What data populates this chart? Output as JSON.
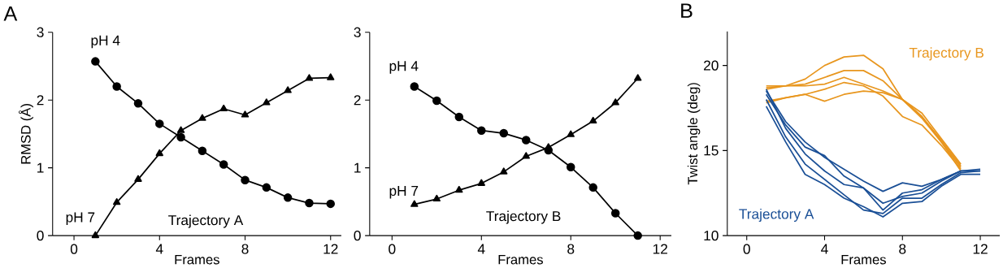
{
  "chart_data": [
    {
      "type": "line",
      "title": "A",
      "xlabel": "Frames",
      "ylabel": "RMSD (Å)",
      "x": [
        1,
        2,
        3,
        4,
        5,
        6,
        7,
        8,
        9,
        10,
        11,
        12
      ],
      "xlim": [
        -1,
        12.5
      ],
      "xticks": [
        0,
        4,
        8,
        12
      ],
      "ylim": [
        0,
        3
      ],
      "yticks": [
        0,
        1,
        2,
        3
      ],
      "series": [
        {
          "color": "#000000",
          "marker": "circle",
          "values": [
            2.57,
            2.2,
            1.95,
            1.65,
            1.45,
            1.25,
            1.05,
            0.82,
            0.71,
            0.56,
            0.48,
            0.47
          ]
        },
        {
          "color": "#000000",
          "marker": "triangle",
          "values": [
            0,
            0.49,
            0.83,
            1.21,
            1.55,
            1.73,
            1.87,
            1.78,
            1.96,
            2.14,
            2.32,
            2.33
          ]
        }
      ],
      "annotations": [
        "pH 4",
        "pH 7",
        "Trajectory A"
      ]
    },
    {
      "type": "line",
      "xlabel": "Frames",
      "x": [
        1,
        2,
        3,
        4,
        5,
        6,
        7,
        8,
        9,
        10,
        11
      ],
      "xlim": [
        -1,
        12.5
      ],
      "xticks": [
        0,
        4,
        8,
        12
      ],
      "ylim": [
        0,
        3
      ],
      "yticks": [
        0,
        1,
        2,
        3
      ],
      "series": [
        {
          "color": "#000000",
          "marker": "circle",
          "values": [
            2.2,
            1.99,
            1.75,
            1.55,
            1.51,
            1.41,
            1.26,
            1.01,
            0.71,
            0.33,
            0
          ]
        },
        {
          "color": "#000000",
          "marker": "triangle",
          "values": [
            0.46,
            0.54,
            0.67,
            0.77,
            0.94,
            1.17,
            1.3,
            1.49,
            1.69,
            1.96,
            2.32
          ]
        }
      ],
      "annotations": [
        "pH 4",
        "pH 7",
        "Trajectory B"
      ]
    },
    {
      "type": "line",
      "title": "B",
      "xlabel": "Frames",
      "ylabel": "Twist angle (deg)",
      "xlim": [
        -1,
        13
      ],
      "xticks": [
        0,
        4,
        8,
        12
      ],
      "ylim": [
        10,
        22
      ],
      "yticks": [
        10,
        15,
        20
      ],
      "marker": "none",
      "series": [
        {
          "name": "Trajectory B",
          "color": "#e8961e",
          "x": [
            1,
            2,
            3,
            4,
            5,
            6,
            7,
            8,
            9,
            10,
            11
          ],
          "values": [
            18.8,
            18.8,
            19.2,
            20.0,
            20.5,
            20.6,
            19.8,
            18.0,
            17.0,
            15.5,
            14.0
          ]
        },
        {
          "color": "#e8961e",
          "x": [
            1,
            2,
            3,
            4,
            5,
            6,
            7,
            8,
            9,
            10,
            11
          ],
          "values": [
            18.6,
            18.8,
            18.9,
            19.3,
            19.7,
            19.7,
            19.1,
            18.0,
            17.2,
            15.7,
            14.2
          ]
        },
        {
          "color": "#e8961e",
          "x": [
            1,
            2,
            3,
            4,
            5,
            6,
            7,
            8,
            9,
            10,
            11
          ],
          "values": [
            18.7,
            18.8,
            18.8,
            18.9,
            19.3,
            18.9,
            18.5,
            18.0,
            17.0,
            15.6,
            14.1
          ]
        },
        {
          "color": "#e8961e",
          "x": [
            1,
            2,
            3,
            4,
            5,
            6,
            7,
            8,
            9,
            10,
            11
          ],
          "values": [
            17.8,
            18.1,
            18.3,
            18.6,
            19.0,
            18.8,
            18.2,
            17.0,
            16.5,
            15.3,
            13.9
          ]
        },
        {
          "color": "#e8961e",
          "x": [
            1,
            2,
            3,
            4,
            5,
            6,
            7,
            8,
            9,
            10,
            11
          ],
          "values": [
            17.9,
            18.1,
            18.3,
            17.9,
            18.3,
            18.5,
            18.4,
            18.0,
            16.9,
            15.5,
            13.8
          ]
        },
        {
          "name": "Trajectory A",
          "color": "#1a4f96",
          "x": [
            1,
            2,
            3,
            4,
            5,
            6,
            7,
            8,
            9,
            10,
            11,
            12
          ],
          "values": [
            18.5,
            16.7,
            15.5,
            14.6,
            13.9,
            13.2,
            12.6,
            13.1,
            12.9,
            13.3,
            13.8,
            13.9
          ]
        },
        {
          "color": "#1a4f96",
          "x": [
            1,
            2,
            3,
            4,
            5,
            6,
            7,
            8,
            9,
            10,
            11,
            12
          ],
          "values": [
            18.3,
            16.5,
            15.2,
            14.7,
            13.5,
            12.8,
            11.9,
            12.3,
            12.5,
            13.2,
            13.8,
            13.8
          ]
        },
        {
          "color": "#1a4f96",
          "x": [
            1,
            2,
            3,
            4,
            5,
            6,
            7,
            8,
            9,
            10,
            11,
            12
          ],
          "values": [
            18.6,
            16.3,
            14.8,
            13.8,
            13.0,
            12.8,
            11.5,
            12.5,
            12.7,
            13.3,
            13.8,
            13.8
          ]
        },
        {
          "color": "#1a4f96",
          "x": [
            1,
            2,
            3,
            4,
            5,
            6,
            7,
            8,
            9,
            10,
            11,
            12
          ],
          "values": [
            18.0,
            15.8,
            14.2,
            13.3,
            12.4,
            11.5,
            11.3,
            12.2,
            12.2,
            13.0,
            13.7,
            13.8
          ]
        },
        {
          "color": "#1a4f96",
          "x": [
            1,
            2,
            3,
            4,
            5,
            6,
            7,
            8,
            9,
            10,
            11,
            12
          ],
          "values": [
            17.6,
            15.5,
            13.6,
            13.0,
            12.2,
            11.7,
            11.1,
            11.9,
            12.0,
            12.9,
            13.6,
            13.6
          ]
        }
      ]
    }
  ]
}
